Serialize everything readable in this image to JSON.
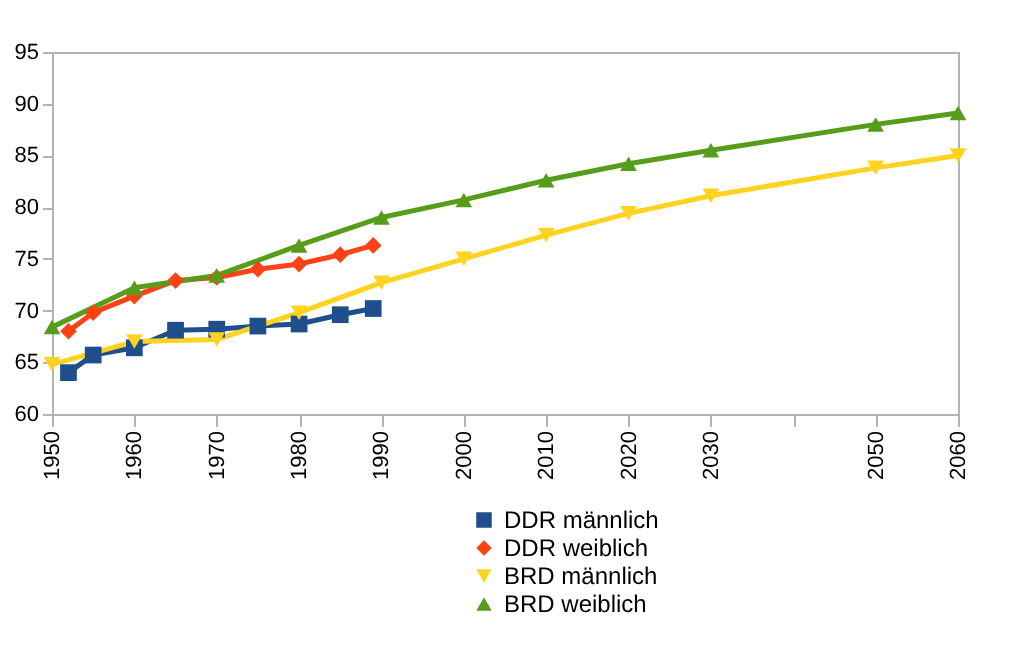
{
  "chart_data": {
    "type": "line",
    "xlim": [
      1950,
      2060
    ],
    "xticks": [
      1950,
      1960,
      1970,
      1980,
      1990,
      2000,
      2010,
      2020,
      2030,
      {
        "value": 2040,
        "label": null
      },
      2050,
      2060
    ],
    "ylim": [
      60,
      95
    ],
    "yticks": [
      60,
      65,
      70,
      75,
      80,
      85,
      90,
      95
    ],
    "grid": false,
    "legend": "bottom",
    "series": [
      {
        "name": "DDR männlich",
        "color": "#1f4e8c",
        "marker": "square",
        "x": [
          1952,
          1955,
          1960,
          1965,
          1970,
          1975,
          1980,
          1985,
          1989
        ],
        "values": [
          64.0,
          65.7,
          66.4,
          68.1,
          68.2,
          68.5,
          68.7,
          69.6,
          70.2
        ]
      },
      {
        "name": "DDR weiblich",
        "color": "#ff4215",
        "marker": "diamond",
        "x": [
          1952,
          1955,
          1960,
          1965,
          1970,
          1975,
          1980,
          1985,
          1989
        ],
        "values": [
          68.0,
          69.8,
          71.4,
          72.9,
          73.2,
          74.0,
          74.5,
          75.4,
          76.3
        ]
      },
      {
        "name": "BRD männlich",
        "color": "#ffd320",
        "marker": "triangle-down",
        "x": [
          1950,
          1960,
          1970,
          1980,
          1990,
          2000,
          2010,
          2020,
          2030,
          2050,
          2060
        ],
        "values": [
          64.8,
          67.0,
          67.2,
          69.8,
          72.7,
          75.0,
          77.3,
          79.4,
          81.1,
          83.8,
          85.0
        ]
      },
      {
        "name": "BRD weiblich",
        "color": "#579d1c",
        "marker": "triangle-up",
        "x": [
          1950,
          1960,
          1970,
          1980,
          1990,
          2000,
          2010,
          2020,
          2030,
          2050,
          2060
        ],
        "values": [
          68.4,
          72.2,
          73.4,
          76.3,
          79.0,
          80.7,
          82.6,
          84.2,
          85.5,
          88.0,
          89.1
        ]
      }
    ]
  }
}
